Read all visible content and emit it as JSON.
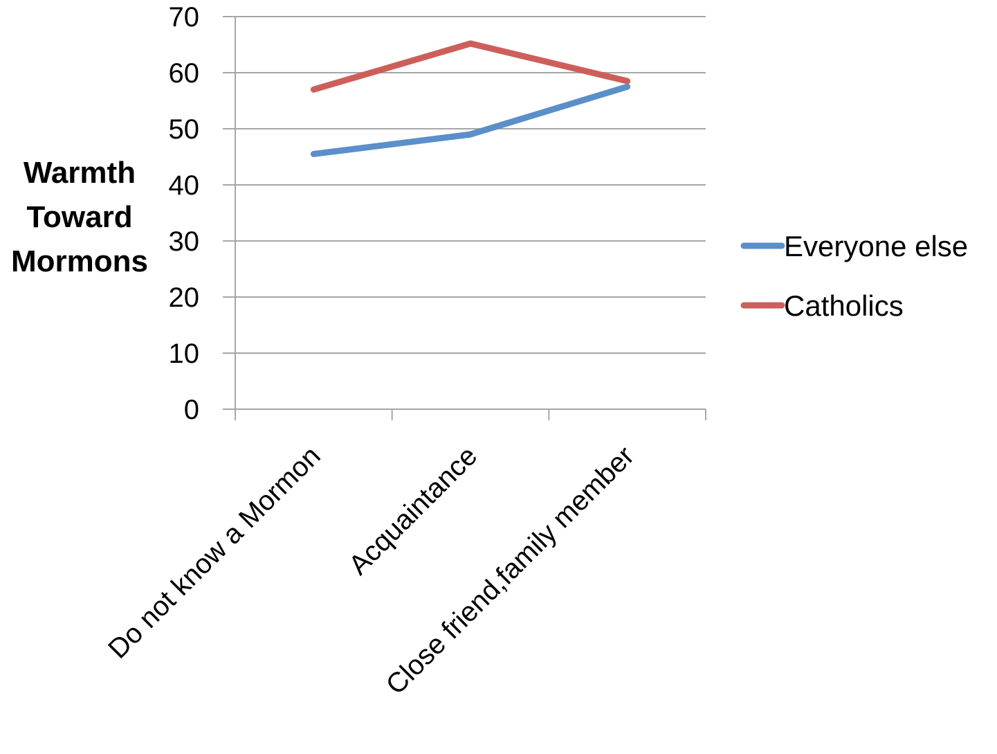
{
  "chart_data": {
    "type": "line",
    "categories": [
      "Do not know a Mormon",
      "Acquaintance",
      "Close friend,family member"
    ],
    "series": [
      {
        "name": "Everyone else",
        "color": "#5b8fc9",
        "values": [
          45.5,
          49,
          57.5
        ]
      },
      {
        "name": "Catholics",
        "color": "#cd5f5b",
        "values": [
          57,
          65.2,
          58.5
        ]
      }
    ],
    "ylabel_lines": [
      "Warmth",
      "Toward",
      "Mormons"
    ],
    "ylim": [
      0,
      70
    ],
    "yticks": [
      "0",
      "10",
      "20",
      "30",
      "40",
      "50",
      "60",
      "70"
    ],
    "ytick_values": [
      0,
      10,
      20,
      30,
      40,
      50,
      60,
      70
    ],
    "grid": true,
    "legend_position": "right",
    "gridline_color": "#a6a6a6"
  }
}
